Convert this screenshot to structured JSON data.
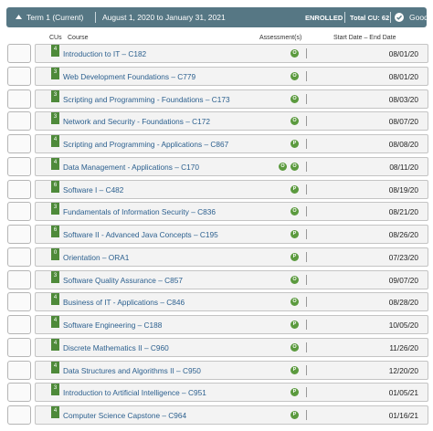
{
  "header": {
    "term": "Term 1 (Current)",
    "dates": "August 1, 2020 to January 31, 2021",
    "status": "ENROLLED",
    "total": "Total CU: 62",
    "standing": "Good"
  },
  "columns": {
    "cus": "CUs",
    "course": "Course",
    "assessments": "Assessment(s)",
    "dates": "Start Date – End Date"
  },
  "rows": [
    {
      "cu": 4,
      "course": "Introduction to IT – C182",
      "assessments": [
        "O"
      ],
      "date": "08/01/20"
    },
    {
      "cu": 3,
      "course": "Web Development Foundations – C779",
      "assessments": [
        "O"
      ],
      "date": "08/01/20"
    },
    {
      "cu": 3,
      "course": "Scripting and Programming - Foundations – C173",
      "assessments": [
        "O"
      ],
      "date": "08/03/20"
    },
    {
      "cu": 3,
      "course": "Network and Security - Foundations – C172",
      "assessments": [
        "O"
      ],
      "date": "08/07/20"
    },
    {
      "cu": 4,
      "course": "Scripting and Programming - Applications – C867",
      "assessments": [
        "P"
      ],
      "date": "08/08/20"
    },
    {
      "cu": 4,
      "course": "Data Management - Applications – C170",
      "assessments": [
        "O",
        "O"
      ],
      "date": "08/11/20"
    },
    {
      "cu": 6,
      "course": "Software I – C482",
      "assessments": [
        "P"
      ],
      "date": "08/19/20"
    },
    {
      "cu": 3,
      "course": "Fundamentals of Information Security – C836",
      "assessments": [
        "O"
      ],
      "date": "08/21/20"
    },
    {
      "cu": 6,
      "course": "Software II - Advanced Java Concepts – C195",
      "assessments": [
        "P"
      ],
      "date": "08/26/20"
    },
    {
      "cu": 0,
      "course": "Orientation – ORA1",
      "assessments": [
        "P"
      ],
      "date": "07/23/20"
    },
    {
      "cu": 3,
      "course": "Software Quality Assurance – C857",
      "assessments": [
        "O"
      ],
      "date": "09/07/20"
    },
    {
      "cu": 4,
      "course": "Business of IT - Applications – C846",
      "assessments": [
        "O"
      ],
      "date": "08/28/20"
    },
    {
      "cu": 4,
      "course": "Software Engineering – C188",
      "assessments": [
        "P"
      ],
      "date": "10/05/20"
    },
    {
      "cu": 4,
      "course": "Discrete Mathematics II – C960",
      "assessments": [
        "O"
      ],
      "date": "11/26/20"
    },
    {
      "cu": 4,
      "course": "Data Structures and Algorithms II – C950",
      "assessments": [
        "P"
      ],
      "date": "12/20/20"
    },
    {
      "cu": 3,
      "course": "Introduction to Artificial Intelligence – C951",
      "assessments": [
        "P"
      ],
      "date": "01/05/21"
    },
    {
      "cu": 4,
      "course": "Computer Science Capstone – C964",
      "assessments": [
        "P"
      ],
      "date": "01/16/21"
    }
  ]
}
